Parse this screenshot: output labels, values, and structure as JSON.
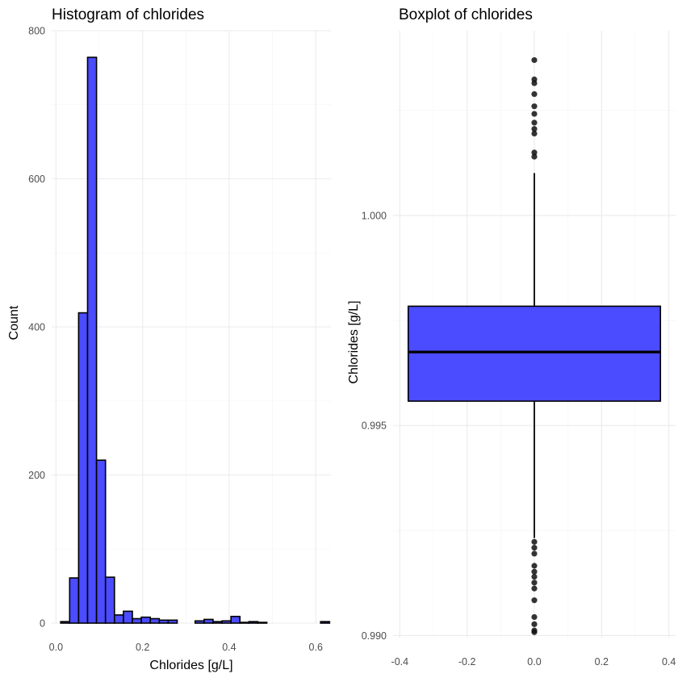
{
  "chart_data": [
    {
      "type": "bar",
      "title": "Histogram of chlorides",
      "xlabel": "Chlorides [g/L]",
      "ylabel": "Count",
      "xlim": [
        -0.01,
        0.635
      ],
      "ylim": [
        0,
        800
      ],
      "x_ticks": [
        0.0,
        0.2,
        0.4,
        0.6
      ],
      "x_tick_labels": [
        "0.0",
        "0.2",
        "0.4",
        "0.6"
      ],
      "y_ticks": [
        0,
        200,
        400,
        600,
        800
      ],
      "y_tick_labels": [
        "0",
        "200",
        "400",
        "600",
        "800"
      ],
      "grid": true,
      "bin_width": 0.0207,
      "bin_centers": [
        0.0212,
        0.0419,
        0.0626,
        0.0833,
        0.104,
        0.1247,
        0.1454,
        0.1661,
        0.1868,
        0.2075,
        0.2282,
        0.2489,
        0.2696,
        0.2903,
        0.311,
        0.3317,
        0.3524,
        0.3731,
        0.3938,
        0.4145,
        0.4352,
        0.4559,
        0.4766,
        0.4973,
        0.518,
        0.5387,
        0.5594,
        0.5801,
        0.6008,
        0.6215
      ],
      "values": [
        2,
        61,
        419,
        764,
        220,
        62,
        11,
        16,
        6,
        8,
        6,
        4,
        4,
        0,
        0,
        3,
        5,
        2,
        3,
        9,
        1,
        2,
        1,
        0,
        0,
        0,
        0,
        0,
        0,
        2
      ],
      "bar_color": "#4b4bff",
      "bar_outline_color": "#000000"
    },
    {
      "type": "boxplot",
      "title": "Boxplot of chlorides",
      "xlabel": "",
      "ylabel": "Chlorides [g/L]",
      "xlim": [
        -0.42,
        0.42
      ],
      "ylim": [
        0.98995,
        1.0044
      ],
      "x_ticks": [
        -0.4,
        -0.2,
        0.0,
        0.2,
        0.4
      ],
      "x_tick_labels": [
        "-0.4",
        "-0.2",
        "0.0",
        "0.2",
        "0.4"
      ],
      "y_ticks": [
        0.99,
        0.995,
        1.0
      ],
      "y_tick_labels": [
        "0.990",
        "0.995",
        "1.000"
      ],
      "grid": true,
      "box": {
        "x_center": 0.0,
        "half_width": 0.375,
        "q1": 0.99558,
        "median": 0.99675,
        "q3": 0.99784,
        "whisker_low": 0.99232,
        "whisker_high": 1.00101
      },
      "outliers": [
        1.0037,
        1.00324,
        1.00315,
        1.00289,
        1.0026,
        1.00242,
        1.00221,
        1.00206,
        1.00195,
        1.0015,
        1.0014,
        0.99223,
        0.99209,
        0.99195,
        0.99166,
        0.99152,
        0.9914,
        0.99126,
        0.99112,
        0.99084,
        0.99044,
        0.99027,
        0.99012,
        0.99008
      ],
      "box_color": "#4b4bff",
      "outline_color": "#000000"
    }
  ]
}
